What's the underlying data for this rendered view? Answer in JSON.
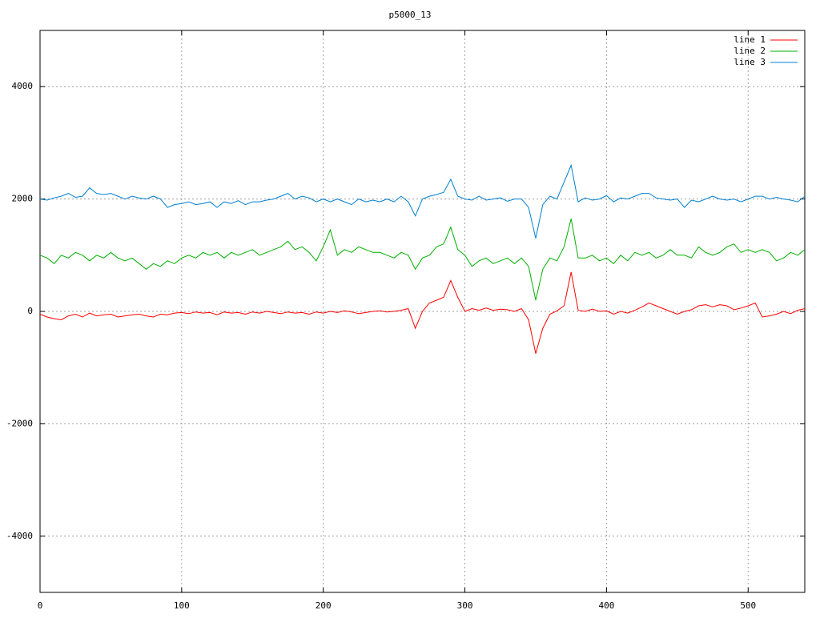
{
  "chart_data": {
    "type": "line",
    "title": "p5000_13",
    "x": [
      0,
      5,
      10,
      15,
      20,
      25,
      30,
      35,
      40,
      45,
      50,
      55,
      60,
      65,
      70,
      75,
      80,
      85,
      90,
      95,
      100,
      105,
      110,
      115,
      120,
      125,
      130,
      135,
      140,
      145,
      150,
      155,
      160,
      165,
      170,
      175,
      180,
      185,
      190,
      195,
      200,
      205,
      210,
      215,
      220,
      225,
      230,
      235,
      240,
      245,
      250,
      255,
      260,
      265,
      270,
      275,
      280,
      285,
      290,
      295,
      300,
      305,
      310,
      315,
      320,
      325,
      330,
      335,
      340,
      345,
      350,
      355,
      360,
      365,
      370,
      375,
      380,
      385,
      390,
      395,
      400,
      405,
      410,
      415,
      420,
      425,
      430,
      435,
      440,
      445,
      450,
      455,
      460,
      465,
      470,
      475,
      480,
      485,
      490,
      495,
      500,
      505,
      510,
      515,
      520,
      525,
      530,
      535,
      540
    ],
    "series": [
      {
        "name": "line 1",
        "color": "#ff0000",
        "values": [
          -50,
          -100,
          -130,
          -150,
          -80,
          -50,
          -100,
          -30,
          -80,
          -60,
          -50,
          -100,
          -80,
          -60,
          -50,
          -80,
          -100,
          -50,
          -60,
          -30,
          -20,
          -40,
          -10,
          -30,
          -20,
          -60,
          -10,
          -30,
          -20,
          -50,
          -10,
          -30,
          0,
          -20,
          -40,
          -10,
          -30,
          -20,
          -50,
          -10,
          -30,
          0,
          -20,
          10,
          -10,
          -40,
          -20,
          0,
          10,
          -10,
          0,
          20,
          50,
          -300,
          0,
          150,
          200,
          250,
          550,
          250,
          0,
          50,
          20,
          60,
          20,
          40,
          30,
          0,
          50,
          -150,
          -750,
          -300,
          -50,
          10,
          100,
          700,
          20,
          0,
          40,
          0,
          10,
          -50,
          0,
          -30,
          20,
          80,
          150,
          100,
          50,
          0,
          -50,
          0,
          30,
          100,
          120,
          80,
          120,
          100,
          30,
          60,
          100,
          150,
          -100,
          -80,
          -50,
          0,
          -40,
          20,
          50
        ]
      },
      {
        "name": "line 2",
        "color": "#00b000",
        "values": [
          1000,
          950,
          850,
          1000,
          950,
          1050,
          1000,
          900,
          1000,
          950,
          1050,
          950,
          900,
          950,
          850,
          750,
          850,
          800,
          900,
          850,
          950,
          1000,
          950,
          1050,
          1000,
          1050,
          950,
          1050,
          1000,
          1050,
          1100,
          1000,
          1050,
          1100,
          1150,
          1250,
          1100,
          1150,
          1050,
          900,
          1150,
          1450,
          1000,
          1100,
          1050,
          1150,
          1100,
          1050,
          1050,
          1000,
          950,
          1050,
          1000,
          750,
          950,
          1000,
          1150,
          1200,
          1500,
          1100,
          1000,
          800,
          900,
          950,
          850,
          900,
          950,
          850,
          950,
          800,
          200,
          750,
          950,
          900,
          1150,
          1650,
          950,
          950,
          1000,
          900,
          950,
          850,
          1000,
          900,
          1050,
          1000,
          1050,
          950,
          1000,
          1100,
          1000,
          1000,
          950,
          1150,
          1050,
          1000,
          1050,
          1150,
          1200,
          1050,
          1100,
          1050,
          1100,
          1050,
          900,
          950,
          1050,
          1000,
          1100
        ]
      },
      {
        "name": "line 3",
        "color": "#0080d0",
        "values": [
          2000,
          1980,
          2020,
          2050,
          2100,
          2030,
          2050,
          2200,
          2100,
          2080,
          2100,
          2050,
          2000,
          2050,
          2020,
          2000,
          2050,
          2000,
          1850,
          1900,
          1920,
          1950,
          1900,
          1920,
          1950,
          1850,
          1950,
          1920,
          1970,
          1900,
          1950,
          1950,
          1980,
          2000,
          2050,
          2100,
          2000,
          2050,
          2020,
          1950,
          2000,
          1950,
          2000,
          1950,
          1900,
          2000,
          1950,
          1980,
          1950,
          2000,
          1950,
          2050,
          1950,
          1700,
          2000,
          2050,
          2080,
          2120,
          2350,
          2050,
          2000,
          1980,
          2050,
          1980,
          2000,
          2020,
          1960,
          2000,
          2000,
          1850,
          1300,
          1900,
          2050,
          2000,
          2300,
          2600,
          1950,
          2020,
          1980,
          2000,
          2060,
          1950,
          2020,
          2000,
          2050,
          2100,
          2100,
          2020,
          2000,
          1980,
          2000,
          1850,
          1980,
          1950,
          2000,
          2050,
          2000,
          1980,
          2000,
          1950,
          2000,
          2050,
          2050,
          2000,
          2030,
          2000,
          1980,
          1950,
          2050
        ]
      }
    ],
    "xlim": [
      0,
      540
    ],
    "xticks": [
      0,
      100,
      200,
      300,
      400,
      500
    ],
    "ylim": [
      -5000,
      5000
    ],
    "yticks": [
      -4000,
      -2000,
      0,
      2000,
      4000
    ],
    "grid": true
  }
}
